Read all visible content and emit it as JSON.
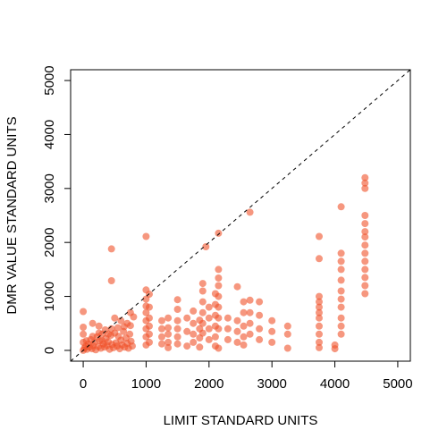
{
  "chart_data": {
    "type": "scatter",
    "title": "",
    "xlabel": "LIMIT STANDARD UNITS",
    "ylabel": "DMR VALUE STANDARD UNITS",
    "xlim": [
      -200,
      5200
    ],
    "ylim": [
      -200,
      5200
    ],
    "x_ticks": [
      0,
      1000,
      2000,
      3000,
      4000,
      5000
    ],
    "y_ticks": [
      0,
      1000,
      2000,
      3000,
      4000,
      5000
    ],
    "reference_line": "y = x (dashed)",
    "grid": false,
    "legend": "none",
    "point_color": "#f0512a",
    "points": [
      [
        0,
        0
      ],
      [
        20,
        40
      ],
      [
        40,
        80
      ],
      [
        60,
        20
      ],
      [
        80,
        120
      ],
      [
        100,
        60
      ],
      [
        120,
        200
      ],
      [
        140,
        30
      ],
      [
        160,
        90
      ],
      [
        180,
        150
      ],
      [
        200,
        10
      ],
      [
        220,
        250
      ],
      [
        240,
        70
      ],
      [
        260,
        180
      ],
      [
        280,
        40
      ],
      [
        300,
        300
      ],
      [
        320,
        120
      ],
      [
        340,
        60
      ],
      [
        360,
        220
      ],
      [
        380,
        90
      ],
      [
        400,
        160
      ],
      [
        420,
        20
      ],
      [
        440,
        280
      ],
      [
        460,
        110
      ],
      [
        480,
        50
      ],
      [
        500,
        320
      ],
      [
        520,
        140
      ],
      [
        540,
        80
      ],
      [
        560,
        260
      ],
      [
        580,
        30
      ],
      [
        600,
        190
      ],
      [
        620,
        100
      ],
      [
        640,
        350
      ],
      [
        660,
        60
      ],
      [
        680,
        230
      ],
      [
        700,
        130
      ],
      [
        720,
        40
      ],
      [
        740,
        300
      ],
      [
        760,
        170
      ],
      [
        780,
        80
      ],
      [
        50,
        180
      ],
      [
        150,
        260
      ],
      [
        250,
        320
      ],
      [
        350,
        380
      ],
      [
        450,
        400
      ],
      [
        550,
        420
      ],
      [
        650,
        440
      ],
      [
        750,
        460
      ],
      [
        0,
        720
      ],
      [
        0,
        430
      ],
      [
        0,
        300
      ],
      [
        0,
        150
      ],
      [
        150,
        500
      ],
      [
        250,
        450
      ],
      [
        300,
        180
      ],
      [
        400,
        300
      ],
      [
        450,
        1880
      ],
      [
        450,
        1290
      ],
      [
        500,
        600
      ],
      [
        600,
        550
      ],
      [
        700,
        500
      ],
      [
        750,
        700
      ],
      [
        800,
        620
      ],
      [
        1000,
        2110
      ],
      [
        1000,
        1120
      ],
      [
        1000,
        950
      ],
      [
        1000,
        820
      ],
      [
        1000,
        700
      ],
      [
        1000,
        550
      ],
      [
        1000,
        400
      ],
      [
        1000,
        250
      ],
      [
        1000,
        100
      ],
      [
        1050,
        1040
      ],
      [
        1050,
        800
      ],
      [
        1050,
        600
      ],
      [
        1050,
        450
      ],
      [
        1050,
        300
      ],
      [
        1050,
        150
      ],
      [
        1250,
        550
      ],
      [
        1250,
        400
      ],
      [
        1250,
        250
      ],
      [
        1250,
        120
      ],
      [
        1350,
        600
      ],
      [
        1350,
        420
      ],
      [
        1350,
        300
      ],
      [
        1350,
        150
      ],
      [
        1350,
        50
      ],
      [
        1500,
        940
      ],
      [
        1500,
        760
      ],
      [
        1500,
        550
      ],
      [
        1500,
        400
      ],
      [
        1500,
        250
      ],
      [
        1500,
        120
      ],
      [
        1650,
        600
      ],
      [
        1650,
        350
      ],
      [
        1650,
        80
      ],
      [
        1750,
        730
      ],
      [
        1750,
        500
      ],
      [
        1750,
        300
      ],
      [
        1750,
        150
      ],
      [
        1850,
        560
      ],
      [
        1850,
        400
      ],
      [
        1850,
        230
      ],
      [
        1850,
        60
      ],
      [
        1900,
        1240
      ],
      [
        1900,
        1100
      ],
      [
        1900,
        900
      ],
      [
        1900,
        700
      ],
      [
        1900,
        500
      ],
      [
        1900,
        320
      ],
      [
        1950,
        1920
      ],
      [
        2000,
        800
      ],
      [
        2000,
        600
      ],
      [
        2000,
        400
      ],
      [
        2000,
        200
      ],
      [
        2100,
        1050
      ],
      [
        2100,
        850
      ],
      [
        2100,
        650
      ],
      [
        2100,
        450
      ],
      [
        2100,
        250
      ],
      [
        2100,
        80
      ],
      [
        2150,
        2170
      ],
      [
        2150,
        1500
      ],
      [
        2150,
        1340
      ],
      [
        2150,
        1200
      ],
      [
        2150,
        1000
      ],
      [
        2150,
        800
      ],
      [
        2150,
        600
      ],
      [
        2150,
        400
      ],
      [
        2150,
        40
      ],
      [
        2300,
        600
      ],
      [
        2300,
        400
      ],
      [
        2300,
        200
      ],
      [
        2450,
        1180
      ],
      [
        2450,
        550
      ],
      [
        2450,
        350
      ],
      [
        2450,
        150
      ],
      [
        2550,
        900
      ],
      [
        2550,
        700
      ],
      [
        2550,
        450
      ],
      [
        2550,
        250
      ],
      [
        2550,
        100
      ],
      [
        2650,
        2560
      ],
      [
        2650,
        930
      ],
      [
        2650,
        700
      ],
      [
        2650,
        500
      ],
      [
        2650,
        300
      ],
      [
        2800,
        900
      ],
      [
        2800,
        650
      ],
      [
        2800,
        400
      ],
      [
        2800,
        200
      ],
      [
        3000,
        550
      ],
      [
        3000,
        350
      ],
      [
        3000,
        150
      ],
      [
        3250,
        450
      ],
      [
        3250,
        300
      ],
      [
        3250,
        40
      ],
      [
        3750,
        2110
      ],
      [
        3750,
        1700
      ],
      [
        3750,
        1000
      ],
      [
        3750,
        900
      ],
      [
        3750,
        800
      ],
      [
        3750,
        700
      ],
      [
        3750,
        600
      ],
      [
        3750,
        450
      ],
      [
        3750,
        300
      ],
      [
        3750,
        150
      ],
      [
        3750,
        50
      ],
      [
        4000,
        100
      ],
      [
        4000,
        30
      ],
      [
        4100,
        2660
      ],
      [
        4100,
        1800
      ],
      [
        4100,
        1650
      ],
      [
        4100,
        1500
      ],
      [
        4100,
        1300
      ],
      [
        4100,
        1100
      ],
      [
        4100,
        950
      ],
      [
        4100,
        800
      ],
      [
        4100,
        600
      ],
      [
        4100,
        450
      ],
      [
        4100,
        300
      ],
      [
        4480,
        3200
      ],
      [
        4480,
        3100
      ],
      [
        4480,
        3000
      ],
      [
        4480,
        2500
      ],
      [
        4480,
        2350
      ],
      [
        4480,
        2200
      ],
      [
        4480,
        2100
      ],
      [
        4480,
        1950
      ],
      [
        4480,
        1800
      ],
      [
        4480,
        1650
      ],
      [
        4480,
        1500
      ],
      [
        4480,
        1350
      ],
      [
        4480,
        1200
      ],
      [
        4480,
        1050
      ]
    ]
  }
}
